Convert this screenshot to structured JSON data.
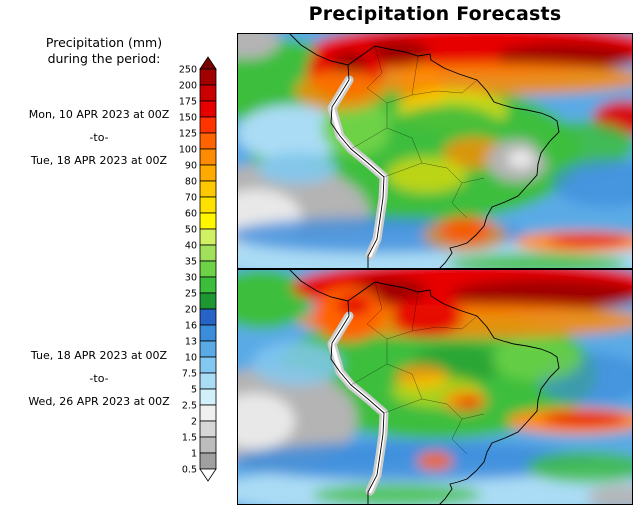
{
  "title": "Precipitation Forecasts",
  "legend": {
    "title_line1": "Precipitation (mm)",
    "title_line2": "during the period:",
    "ticks": [
      "250",
      "200",
      "175",
      "150",
      "125",
      "100",
      "90",
      "80",
      "70",
      "60",
      "50",
      "40",
      "35",
      "30",
      "25",
      "20",
      "16",
      "13",
      "10",
      "7.5",
      "5",
      "2.5",
      "2",
      "1.5",
      "1",
      "0.5"
    ],
    "colors": [
      "#7a0000",
      "#a00000",
      "#c80000",
      "#e60000",
      "#ff3200",
      "#ff6400",
      "#ff8c00",
      "#ffaa00",
      "#ffc800",
      "#ffe100",
      "#fff600",
      "#d2f064",
      "#a0e05a",
      "#6ed246",
      "#3cbe3c",
      "#1e9632",
      "#2864c8",
      "#3c8cdc",
      "#5aaae6",
      "#82c8f0",
      "#aadcf5",
      "#d2f0fa",
      "#f0f0f0",
      "#d7d7d7",
      "#bcbcbc",
      "#a0a0a0",
      "#ffffff"
    ]
  },
  "panels": [
    {
      "start": "Mon, 10 APR 2023 at 00Z",
      "to": "-to-",
      "end": "Tue, 18 APR 2023 at 00Z"
    },
    {
      "start": "Tue, 18 APR 2023 at 00Z",
      "to": "-to-",
      "end": "Wed, 26 APR 2023 at 00Z"
    }
  ]
}
